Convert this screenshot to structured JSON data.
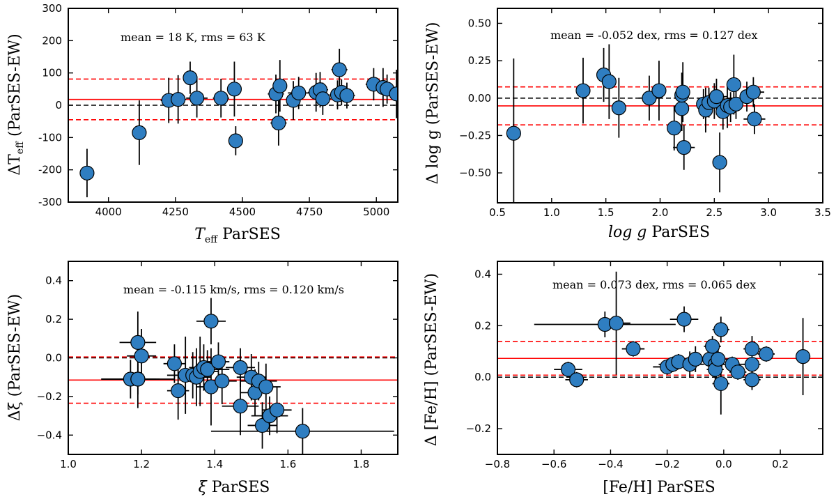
{
  "chart_data": [
    {
      "type": "scatter",
      "id": "teff",
      "xlabel_main": "T",
      "xlabel_sub": "eff",
      "xlabel_tail": " ParSES",
      "ylabel_main": "ΔT",
      "ylabel_sub": "eff",
      "ylabel_tail": " (ParSES-EW)",
      "annotation": "mean = 18 K, rms = 63 K",
      "xlim": [
        3850,
        5080
      ],
      "ylim": [
        -300,
        300
      ],
      "xticks": [
        4000,
        4250,
        4500,
        4750,
        5000
      ],
      "yticks": [
        -300,
        -200,
        -100,
        0,
        100,
        200,
        300
      ],
      "mean": 18,
      "rms": 63,
      "points": [
        {
          "x": 3920,
          "y": -210,
          "xerr": 0,
          "yerr": 75
        },
        {
          "x": 4115,
          "y": -85,
          "xerr": 0,
          "yerr": 100
        },
        {
          "x": 4225,
          "y": 15,
          "xerr": 30,
          "yerr": 70
        },
        {
          "x": 4260,
          "y": 18,
          "xerr": 30,
          "yerr": 75
        },
        {
          "x": 4305,
          "y": 85,
          "xerr": 20,
          "yerr": 50
        },
        {
          "x": 4330,
          "y": 22,
          "xerr": 40,
          "yerr": 60
        },
        {
          "x": 4420,
          "y": 22,
          "xerr": 30,
          "yerr": 60
        },
        {
          "x": 4470,
          "y": 50,
          "xerr": 0,
          "yerr": 85
        },
        {
          "x": 4475,
          "y": -110,
          "xerr": 25,
          "yerr": 45
        },
        {
          "x": 4625,
          "y": 35,
          "xerr": 30,
          "yerr": 60
        },
        {
          "x": 4635,
          "y": -55,
          "xerr": 30,
          "yerr": 70
        },
        {
          "x": 4640,
          "y": 60,
          "xerr": 0,
          "yerr": 80
        },
        {
          "x": 4690,
          "y": 15,
          "xerr": 25,
          "yerr": 60
        },
        {
          "x": 4710,
          "y": 38,
          "xerr": 40,
          "yerr": 50
        },
        {
          "x": 4775,
          "y": 40,
          "xerr": 30,
          "yerr": 60
        },
        {
          "x": 4790,
          "y": 48,
          "xerr": 30,
          "yerr": 55
        },
        {
          "x": 4800,
          "y": 20,
          "xerr": 30,
          "yerr": 50
        },
        {
          "x": 4855,
          "y": 32,
          "xerr": 30,
          "yerr": 45
        },
        {
          "x": 4862,
          "y": 110,
          "xerr": 30,
          "yerr": 65
        },
        {
          "x": 4870,
          "y": 40,
          "xerr": 30,
          "yerr": 40
        },
        {
          "x": 4890,
          "y": 30,
          "xerr": 30,
          "yerr": 40
        },
        {
          "x": 4990,
          "y": 65,
          "xerr": 30,
          "yerr": 50
        },
        {
          "x": 5025,
          "y": 55,
          "xerr": 30,
          "yerr": 60
        },
        {
          "x": 5040,
          "y": 50,
          "xerr": 30,
          "yerr": 45
        },
        {
          "x": 5075,
          "y": 35,
          "xerr": 0,
          "yerr": 75
        }
      ]
    },
    {
      "type": "scatter",
      "id": "logg",
      "xlabel_main": "log g",
      "xlabel_sub": "",
      "xlabel_tail": " ParSES",
      "ylabel_main": "Δ log g",
      "ylabel_sub": "",
      "ylabel_tail": " (ParSES-EW)",
      "annotation": "mean = -0.052 dex, rms = 0.127 dex",
      "xlim": [
        0.5,
        3.5
      ],
      "ylim": [
        -0.7,
        0.6
      ],
      "xticks": [
        0.5,
        1.0,
        1.5,
        2.0,
        2.5,
        3.0,
        3.5
      ],
      "yticks": [
        -0.5,
        -0.25,
        0.0,
        0.25,
        0.5
      ],
      "tick_decimals_x": 1,
      "tick_decimals_y": 2,
      "mean": -0.052,
      "rms": 0.127,
      "points": [
        {
          "x": 0.65,
          "y": -0.235,
          "xerr": 0,
          "yerr": 0.5
        },
        {
          "x": 1.29,
          "y": 0.05,
          "xerr": 0,
          "yerr": 0.22
        },
        {
          "x": 1.48,
          "y": 0.155,
          "xerr": 0,
          "yerr": 0.18
        },
        {
          "x": 1.53,
          "y": 0.11,
          "xerr": 0,
          "yerr": 0.25
        },
        {
          "x": 1.62,
          "y": -0.065,
          "xerr": 0,
          "yerr": 0.2
        },
        {
          "x": 1.9,
          "y": 0.0,
          "xerr": 0.1,
          "yerr": 0.15
        },
        {
          "x": 1.99,
          "y": 0.05,
          "xerr": 0,
          "yerr": 0.2
        },
        {
          "x": 2.13,
          "y": -0.2,
          "xerr": 0.05,
          "yerr": 0.15
        },
        {
          "x": 2.2,
          "y": -0.07,
          "xerr": 0.05,
          "yerr": 0.15
        },
        {
          "x": 2.2,
          "y": 0.02,
          "xerr": 0.05,
          "yerr": 0.15
        },
        {
          "x": 2.21,
          "y": 0.04,
          "xerr": 0.05,
          "yerr": 0.2
        },
        {
          "x": 2.22,
          "y": -0.33,
          "xerr": 0.1,
          "yerr": 0.15
        },
        {
          "x": 2.4,
          "y": -0.04,
          "xerr": 0.05,
          "yerr": 0.1
        },
        {
          "x": 2.42,
          "y": -0.08,
          "xerr": 0.05,
          "yerr": 0.15
        },
        {
          "x": 2.45,
          "y": -0.03,
          "xerr": 0.05,
          "yerr": 0.1
        },
        {
          "x": 2.5,
          "y": -0.02,
          "xerr": 0.05,
          "yerr": 0.12
        },
        {
          "x": 2.52,
          "y": 0.01,
          "xerr": 0.1,
          "yerr": 0.12
        },
        {
          "x": 2.55,
          "y": -0.43,
          "xerr": 0,
          "yerr": 0.2
        },
        {
          "x": 2.58,
          "y": -0.09,
          "xerr": 0.05,
          "yerr": 0.12
        },
        {
          "x": 2.62,
          "y": -0.05,
          "xerr": 0.1,
          "yerr": 0.15
        },
        {
          "x": 2.65,
          "y": -0.06,
          "xerr": 0.05,
          "yerr": 0.1
        },
        {
          "x": 2.68,
          "y": 0.09,
          "xerr": 0,
          "yerr": 0.2
        },
        {
          "x": 2.7,
          "y": -0.04,
          "xerr": 0.05,
          "yerr": 0.1
        },
        {
          "x": 2.8,
          "y": 0.01,
          "xerr": 0.05,
          "yerr": 0.1
        },
        {
          "x": 2.86,
          "y": 0.04,
          "xerr": 0.1,
          "yerr": 0.1
        },
        {
          "x": 2.87,
          "y": -0.14,
          "xerr": 0.1,
          "yerr": 0.1
        }
      ]
    },
    {
      "type": "scatter",
      "id": "xi",
      "xlabel_main": "ξ",
      "xlabel_sub": "",
      "xlabel_tail": " ParSES",
      "ylabel_main": "Δξ",
      "ylabel_sub": "",
      "ylabel_tail": " (ParSES-EW)",
      "annotation": "mean = -0.115 km/s, rms = 0.120 km/s",
      "xlim": [
        1.0,
        1.9
      ],
      "ylim": [
        -0.5,
        0.5
      ],
      "xticks": [
        1.0,
        1.2,
        1.4,
        1.6,
        1.8
      ],
      "yticks": [
        -0.4,
        -0.2,
        0.0,
        0.2,
        0.4
      ],
      "tick_decimals_x": 1,
      "tick_decimals_y": 1,
      "mean": -0.115,
      "rms": 0.12,
      "points": [
        {
          "x": 1.17,
          "y": -0.11,
          "xerr": 0.08,
          "yerr": 0.1
        },
        {
          "x": 1.19,
          "y": 0.08,
          "xerr": 0.05,
          "yerr": 0.16
        },
        {
          "x": 1.19,
          "y": -0.11,
          "xerr": 0.05,
          "yerr": 0.15
        },
        {
          "x": 1.2,
          "y": 0.01,
          "xerr": 0.04,
          "yerr": 0.14
        },
        {
          "x": 1.19,
          "y": -0.11,
          "xerr": 0.1,
          "yerr": 0.08
        },
        {
          "x": 1.29,
          "y": -0.03,
          "xerr": 0.03,
          "yerr": 0.1
        },
        {
          "x": 1.3,
          "y": -0.17,
          "xerr": 0.03,
          "yerr": 0.15
        },
        {
          "x": 1.32,
          "y": -0.09,
          "xerr": 0.05,
          "yerr": 0.2
        },
        {
          "x": 1.34,
          "y": -0.09,
          "xerr": 0.04,
          "yerr": 0.12
        },
        {
          "x": 1.35,
          "y": -0.1,
          "xerr": 0.04,
          "yerr": 0.15
        },
        {
          "x": 1.36,
          "y": -0.07,
          "xerr": 0.05,
          "yerr": 0.18
        },
        {
          "x": 1.37,
          "y": -0.05,
          "xerr": 0.04,
          "yerr": 0.12
        },
        {
          "x": 1.38,
          "y": -0.06,
          "xerr": 0.06,
          "yerr": 0.1
        },
        {
          "x": 1.39,
          "y": 0.19,
          "xerr": 0.04,
          "yerr": 0.12
        },
        {
          "x": 1.39,
          "y": -0.15,
          "xerr": 0.04,
          "yerr": 0.2
        },
        {
          "x": 1.41,
          "y": -0.02,
          "xerr": 0.03,
          "yerr": 0.1
        },
        {
          "x": 1.42,
          "y": -0.12,
          "xerr": 0.04,
          "yerr": 0.12
        },
        {
          "x": 1.47,
          "y": -0.05,
          "xerr": 0.04,
          "yerr": 0.1
        },
        {
          "x": 1.47,
          "y": -0.25,
          "xerr": 0.05,
          "yerr": 0.15
        },
        {
          "x": 1.5,
          "y": -0.1,
          "xerr": 0.04,
          "yerr": 0.12
        },
        {
          "x": 1.51,
          "y": -0.18,
          "xerr": 0.04,
          "yerr": 0.12
        },
        {
          "x": 1.52,
          "y": -0.12,
          "xerr": 0.05,
          "yerr": 0.1
        },
        {
          "x": 1.53,
          "y": -0.35,
          "xerr": 0.04,
          "yerr": 0.12
        },
        {
          "x": 1.54,
          "y": -0.15,
          "xerr": 0.04,
          "yerr": 0.12
        },
        {
          "x": 1.55,
          "y": -0.3,
          "xerr": 0.05,
          "yerr": 0.1
        },
        {
          "x": 1.57,
          "y": -0.27,
          "xerr": 0.04,
          "yerr": 0.12
        },
        {
          "x": 1.64,
          "y": -0.38,
          "xerr": 0.25,
          "yerr": 0.12
        }
      ]
    },
    {
      "type": "scatter",
      "id": "feh",
      "xlabel_main": "[Fe/H]",
      "xlabel_sub": "",
      "xlabel_tail": " ParSES",
      "ylabel_main": "Δ [Fe/H]",
      "ylabel_sub": "",
      "ylabel_tail": " (ParSES-EW)",
      "annotation": "mean = 0.073 dex, rms = 0.065 dex",
      "xlim": [
        -0.8,
        0.35
      ],
      "ylim": [
        -0.3,
        0.45
      ],
      "xticks": [
        -0.8,
        -0.6,
        -0.4,
        -0.2,
        0.0,
        0.2
      ],
      "yticks": [
        -0.2,
        0.0,
        0.2,
        0.4
      ],
      "tick_decimals_x": 1,
      "tick_decimals_y": 1,
      "mean": 0.073,
      "rms": 0.065,
      "points": [
        {
          "x": -0.55,
          "y": 0.03,
          "xerr": 0.05,
          "yerr": 0.03
        },
        {
          "x": -0.52,
          "y": -0.01,
          "xerr": 0.04,
          "yerr": 0.03
        },
        {
          "x": -0.42,
          "y": 0.205,
          "xerr": 0.25,
          "yerr": 0.05
        },
        {
          "x": -0.38,
          "y": 0.21,
          "xerr": 0.05,
          "yerr": 0.2
        },
        {
          "x": -0.32,
          "y": 0.11,
          "xerr": 0.04,
          "yerr": 0.03
        },
        {
          "x": -0.2,
          "y": 0.04,
          "xerr": 0.05,
          "yerr": 0.03
        },
        {
          "x": -0.18,
          "y": 0.05,
          "xerr": 0.05,
          "yerr": 0.03
        },
        {
          "x": -0.16,
          "y": 0.06,
          "xerr": 0.05,
          "yerr": 0.03
        },
        {
          "x": -0.14,
          "y": 0.225,
          "xerr": 0.05,
          "yerr": 0.05
        },
        {
          "x": -0.12,
          "y": 0.05,
          "xerr": 0.05,
          "yerr": 0.05
        },
        {
          "x": -0.1,
          "y": 0.07,
          "xerr": 0.04,
          "yerr": 0.05
        },
        {
          "x": -0.05,
          "y": 0.07,
          "xerr": 0.05,
          "yerr": 0.04
        },
        {
          "x": -0.04,
          "y": 0.12,
          "xerr": 0.03,
          "yerr": 0.04
        },
        {
          "x": -0.03,
          "y": 0.05,
          "xerr": 0.03,
          "yerr": 0.04
        },
        {
          "x": -0.03,
          "y": 0.03,
          "xerr": 0.03,
          "yerr": 0.04
        },
        {
          "x": -0.02,
          "y": 0.07,
          "xerr": 0.05,
          "yerr": 0.05
        },
        {
          "x": -0.01,
          "y": 0.185,
          "xerr": 0.03,
          "yerr": 0.05
        },
        {
          "x": -0.01,
          "y": -0.025,
          "xerr": 0.03,
          "yerr": 0.12
        },
        {
          "x": 0.03,
          "y": 0.05,
          "xerr": 0.05,
          "yerr": 0.03
        },
        {
          "x": 0.05,
          "y": 0.02,
          "xerr": 0.03,
          "yerr": 0.03
        },
        {
          "x": 0.1,
          "y": 0.11,
          "xerr": 0.03,
          "yerr": 0.05
        },
        {
          "x": 0.1,
          "y": 0.05,
          "xerr": 0.03,
          "yerr": 0.03
        },
        {
          "x": 0.1,
          "y": -0.01,
          "xerr": 0.03,
          "yerr": 0.04
        },
        {
          "x": 0.15,
          "y": 0.09,
          "xerr": 0.03,
          "yerr": 0.03
        },
        {
          "x": 0.28,
          "y": 0.08,
          "xerr": 0,
          "yerr": 0.15
        }
      ]
    }
  ],
  "colors": {
    "marker": "#2f7ec1",
    "mean_line": "#ff0000",
    "zero_line": "#000000"
  }
}
